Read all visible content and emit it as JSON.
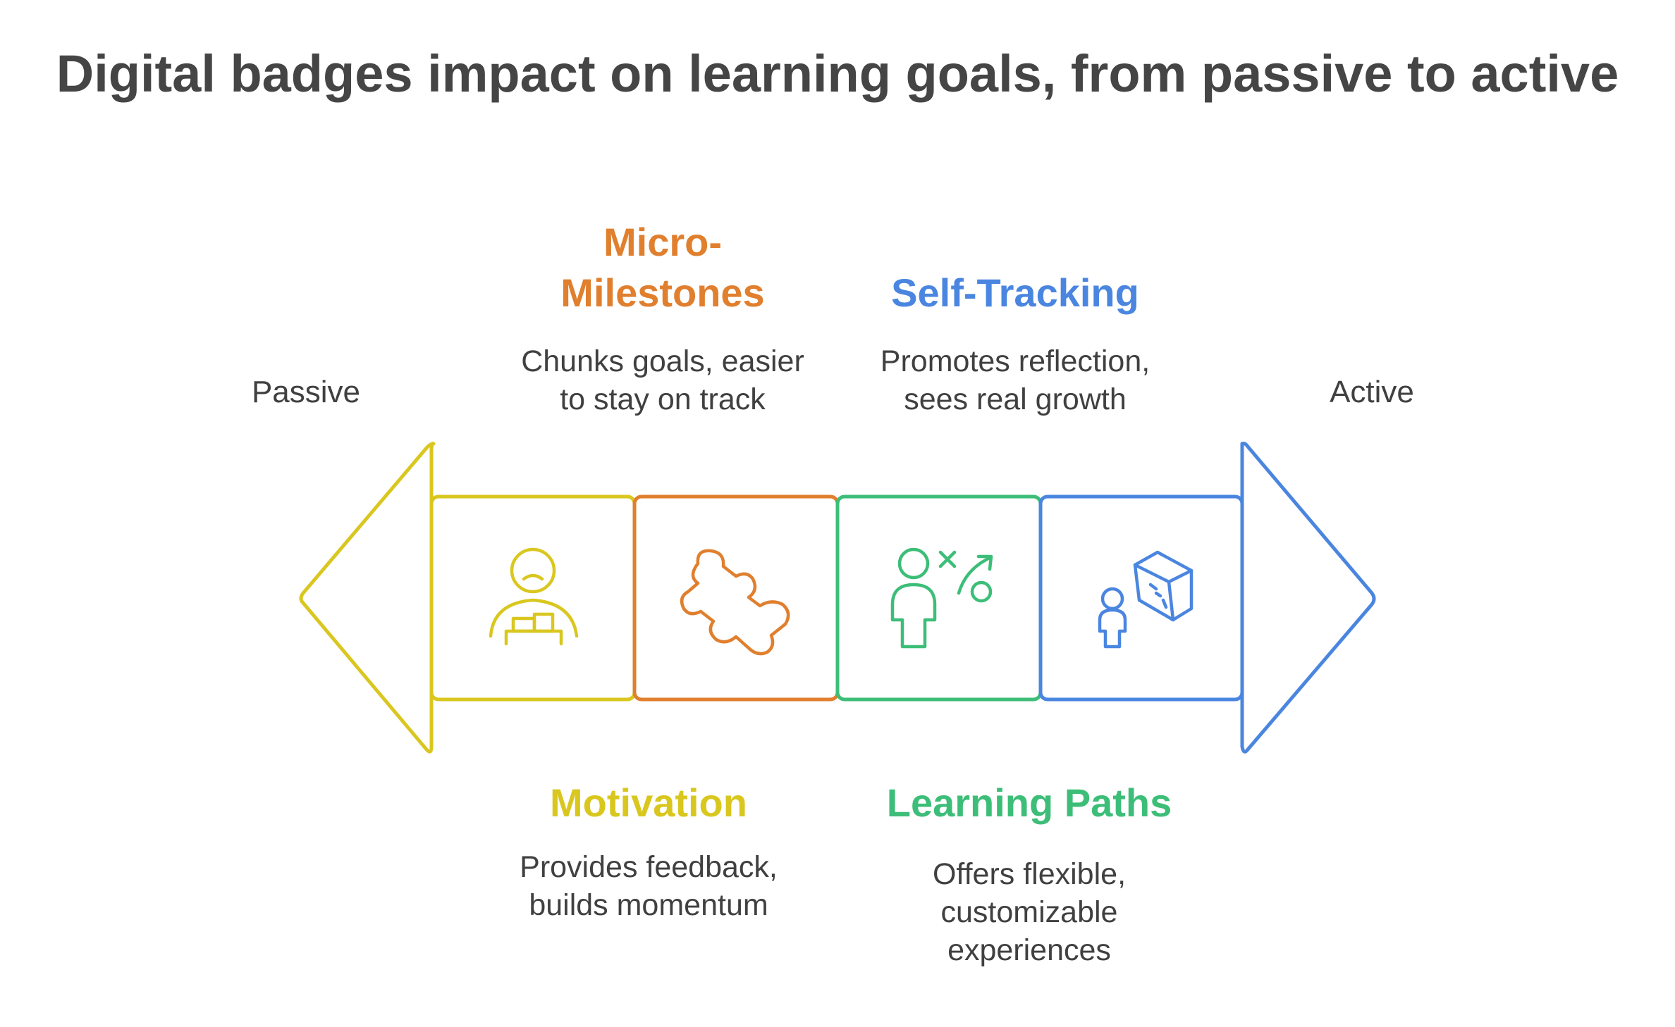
{
  "title": "Digital badges impact on learning goals, from passive to active",
  "scale": {
    "left": "Passive",
    "right": "Active"
  },
  "stages": [
    {
      "title": "Motivation",
      "description_lines": [
        "Provides feedback,",
        "builds momentum"
      ],
      "color": "#D9C71F",
      "icon": "person-with-blocks-icon"
    },
    {
      "title_lines": [
        "Micro-",
        "Milestones"
      ],
      "description_lines": [
        "Chunks goals, easier",
        "to stay on track"
      ],
      "color": "#E07F2E",
      "icon": "puzzle-piece-icon"
    },
    {
      "title": "Learning Paths",
      "description_lines": [
        "Offers flexible,",
        "customizable",
        "experiences"
      ],
      "color": "#3DBE78",
      "icon": "person-strategy-icon"
    },
    {
      "title": "Self-Tracking",
      "description_lines": [
        "Promotes reflection,",
        "sees real growth"
      ],
      "color": "#4A86E0",
      "icon": "person-with-cube-icon"
    }
  ]
}
